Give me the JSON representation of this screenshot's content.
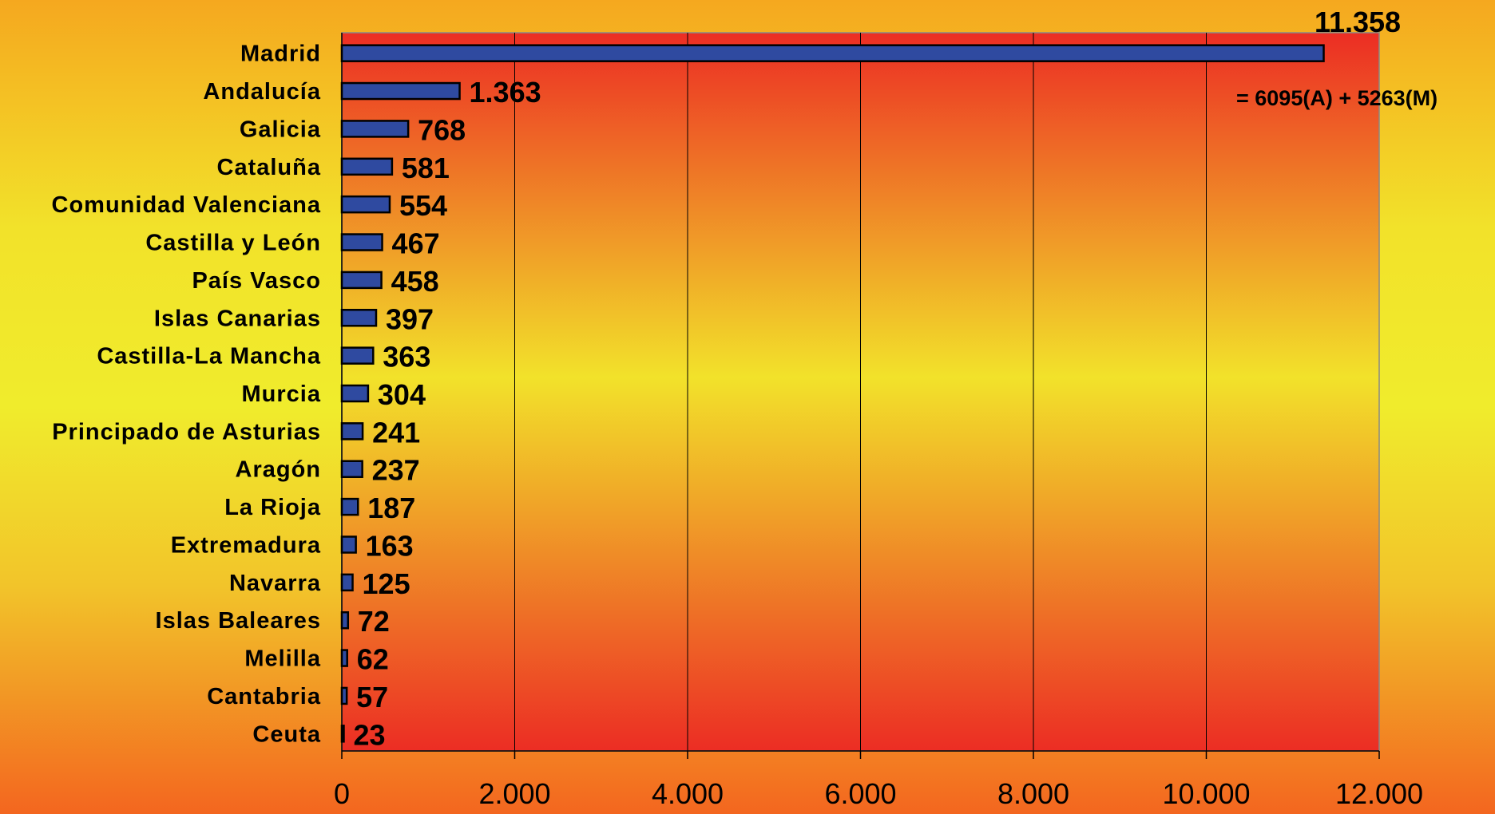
{
  "chart_data": {
    "type": "bar",
    "orientation": "horizontal",
    "categories": [
      "Madrid",
      "Andalucía",
      "Galicia",
      "Cataluña",
      "Comunidad Valenciana",
      "Castilla y León",
      "País Vasco",
      "Islas Canarias",
      "Castilla-La Mancha",
      "Murcia",
      "Principado de Asturias",
      "Aragón",
      "La Rioja",
      "Extremadura",
      "Navarra",
      "Islas Baleares",
      "Melilla",
      "Cantabria",
      "Ceuta"
    ],
    "values": [
      11358,
      1363,
      768,
      581,
      554,
      467,
      458,
      397,
      363,
      304,
      241,
      237,
      187,
      163,
      125,
      72,
      62,
      57,
      23
    ],
    "value_labels": [
      "11.358",
      "1.363",
      "768",
      "581",
      "554",
      "467",
      "458",
      "397",
      "363",
      "304",
      "241",
      "237",
      "187",
      "163",
      "125",
      "72",
      "62",
      "57",
      "23"
    ],
    "xlim": [
      0,
      12000
    ],
    "x_ticks": [
      0,
      2000,
      4000,
      6000,
      8000,
      10000,
      12000
    ],
    "x_tick_labels": [
      "0",
      "2.000",
      "4.000",
      "6.000",
      "8.000",
      "10.000",
      "12.000"
    ],
    "annotation": "= 6095(A) + 5263(M)",
    "grid": true,
    "colors": {
      "bar_fill": "#2f4aa0",
      "bar_stroke": "#000000",
      "plot_top": "#ec2d24",
      "plot_mid": "#f2e22a",
      "plot_bottom": "#ec2d24"
    }
  }
}
